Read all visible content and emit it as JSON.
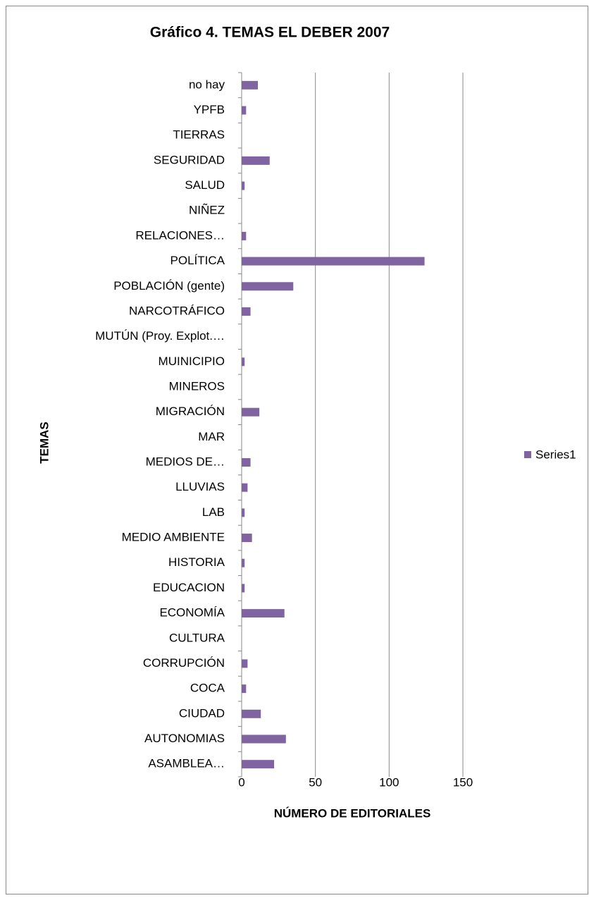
{
  "chart_data": {
    "type": "bar",
    "orientation": "horizontal",
    "title": "Gráfico 4. TEMAS EL DEBER 2007",
    "y_label": "TEMAS",
    "x_label": "NÚMERO DE EDITORIALES",
    "categories": [
      "ASAMBLEA…",
      "AUTONOMIAS",
      "CIUDAD",
      "COCA",
      "CORRUPCIÓN",
      "CULTURA",
      "ECONOMÍA",
      "EDUCACION",
      "HISTORIA",
      "MEDIO AMBIENTE",
      "LAB",
      "LLUVIAS",
      "MEDIOS DE…",
      "MAR",
      "MIGRACIÓN",
      "MINEROS",
      "MUINICIPIO",
      "MUTÚN (Proy. Explot.…",
      "NARCOTRÁFICO",
      "POBLACIÓN (gente)",
      "POLÍTICA",
      "RELACIONES…",
      "NIÑEZ",
      "SALUD",
      "SEGURIDAD",
      "TIERRAS",
      "YPFB",
      "no hay"
    ],
    "series": [
      {
        "name": "Series1",
        "color": "#8064a2",
        "values": [
          22,
          30,
          13,
          3,
          4,
          0,
          29,
          2,
          2,
          7,
          2,
          4,
          6,
          0,
          12,
          0,
          2,
          0,
          6,
          35,
          124,
          3,
          0,
          2,
          19,
          0,
          3,
          11
        ]
      }
    ],
    "xlim": [
      0,
      150
    ],
    "xticks": [
      0,
      50,
      100,
      150
    ],
    "grid": true,
    "legend": "right"
  }
}
